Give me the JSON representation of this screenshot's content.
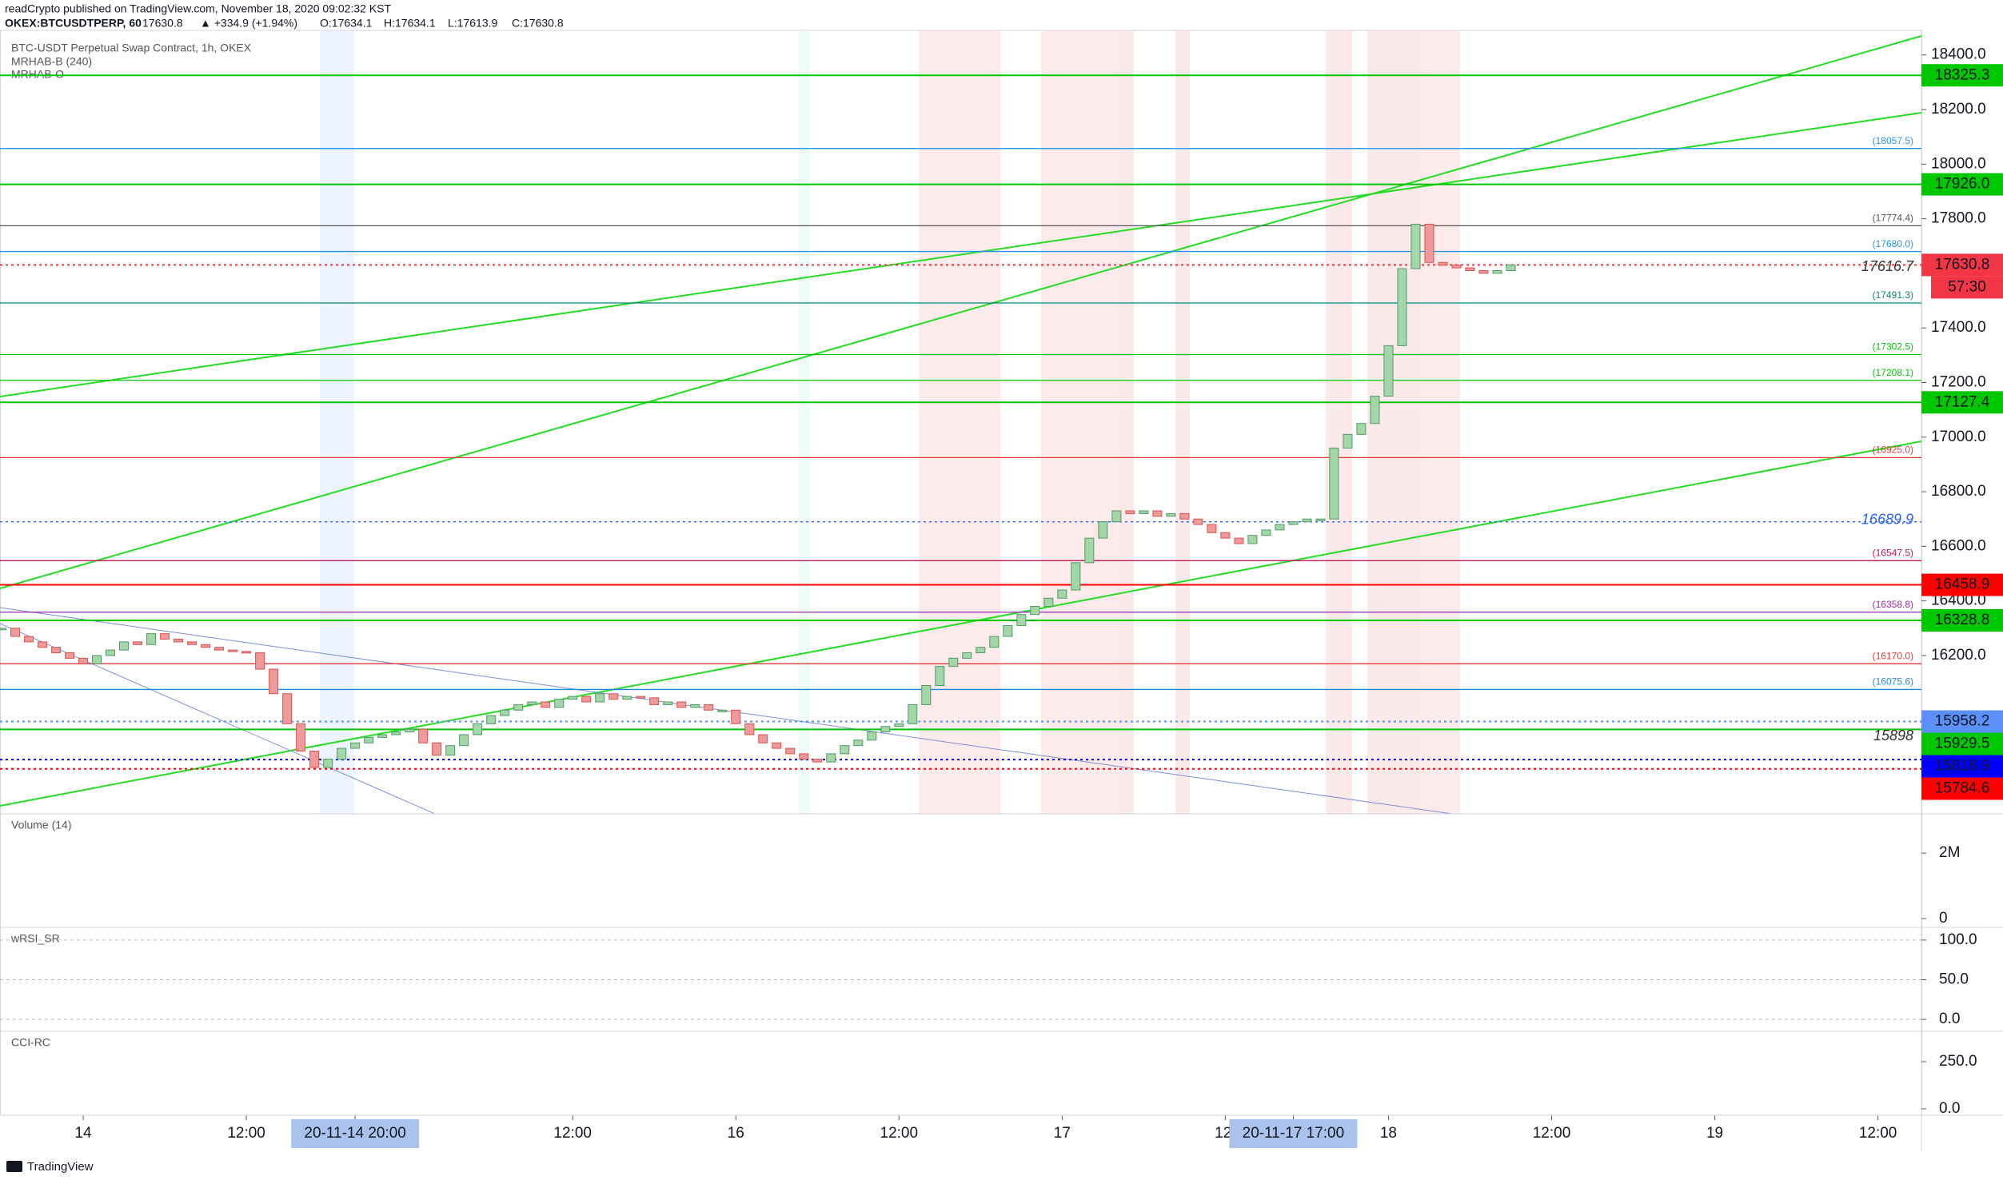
{
  "header": {
    "publisher": "readCrypto published on TradingView.com, November 18, 2020 09:02:32 KST",
    "symbol": "OKEX:BTCUSDTPERP, 60",
    "last": "17630.8",
    "change": "▲ +334.9 (+1.94%)",
    "open": "O:17634.1",
    "high": "H:17634.1",
    "low": "L:17613.9",
    "close": "C:17630.8"
  },
  "legend": [
    "BTC-USDT Perpetual Swap Contract, 1h, OKEX",
    "MRHAB-B (240)",
    "MRHAB-O"
  ],
  "chart_data": {
    "type": "candlestick",
    "up_color": "#a5d6a7",
    "down_color": "#ef9a9a",
    "close": [
      16300,
      16270,
      16250,
      16230,
      16210,
      16190,
      16170,
      16200,
      16220,
      16250,
      16240,
      16280,
      16260,
      16250,
      16240,
      16230,
      16220,
      16215,
      16210,
      16150,
      16060,
      15950,
      15850,
      15790,
      15820,
      15860,
      15880,
      15900,
      15910,
      15920,
      15930,
      15880,
      15835,
      15870,
      15910,
      15950,
      15980,
      16000,
      16020,
      16030,
      16010,
      16040,
      16050,
      16030,
      16060,
      16040,
      16050,
      16045,
      16020,
      16030,
      16010,
      16020,
      16000,
      16000,
      15950,
      15910,
      15880,
      15860,
      15840,
      15820,
      15810,
      15840,
      15870,
      15890,
      15920,
      15940,
      15950,
      16020,
      16090,
      16160,
      16190,
      16210,
      16230,
      16270,
      16310,
      16350,
      16380,
      16410,
      16440,
      16540,
      16630,
      16690,
      16730,
      16720,
      16730,
      16710,
      16720,
      16700,
      16680,
      16650,
      16630,
      16610,
      16640,
      16660,
      16680,
      16690,
      16700,
      16700,
      16960,
      17010,
      17050,
      17150,
      17335,
      17617,
      17780,
      17640,
      17630,
      17620,
      17610,
      17600,
      17610,
      17630.8
    ],
    "xlim": [
      -0.12,
      141.2
    ],
    "xticks": [
      {
        "value": 6,
        "label": "14"
      },
      {
        "value": 18,
        "label": "12:00"
      },
      {
        "value": 26,
        "label": "20-11-14  20:00",
        "highlight": true
      },
      {
        "value": 42,
        "label": "12:00"
      },
      {
        "value": 54,
        "label": "16"
      },
      {
        "value": 66,
        "label": "12:00"
      },
      {
        "value": 78,
        "label": "17"
      },
      {
        "value": 90,
        "label": "12:"
      },
      {
        "value": 95,
        "label": "20-11-17  17:00",
        "highlight": true
      },
      {
        "value": 102,
        "label": "18"
      },
      {
        "value": 114,
        "label": "12:00"
      },
      {
        "value": 126,
        "label": "19"
      },
      {
        "value": 138,
        "label": "12:00"
      }
    ],
    "ylim": [
      15620,
      18490
    ],
    "yticks": [
      {
        "value": 18400,
        "label": "18400.0"
      },
      {
        "value": 18200,
        "label": "18200.0"
      },
      {
        "value": 18000,
        "label": "18000.0"
      },
      {
        "value": 17800,
        "label": "17800.0"
      },
      {
        "value": 17400,
        "label": "17400.0"
      },
      {
        "value": 17200,
        "label": "17200.0"
      },
      {
        "value": 17000,
        "label": "17000.0"
      },
      {
        "value": 16800,
        "label": "16800.0"
      },
      {
        "value": 16600,
        "label": "16600.0"
      },
      {
        "value": 16400,
        "label": "16400.0"
      },
      {
        "value": 16200,
        "label": "16200.0"
      }
    ],
    "levels": [
      {
        "value": 18325.3,
        "label": "18325.3",
        "kind": "tag",
        "color": "#00c800",
        "text_color": "#000000",
        "line": "solid"
      },
      {
        "value": 18057.5,
        "label": "(18057.5)",
        "kind": "small",
        "color": "#2196f3",
        "line": "solid"
      },
      {
        "value": 17926.0,
        "label": "17926.0",
        "kind": "tag",
        "color": "#00c800",
        "text_color": "#000000",
        "line": "solid"
      },
      {
        "value": 17774.4,
        "label": "(17774.4)",
        "kind": "small",
        "color": "#555555",
        "line": "solid"
      },
      {
        "value": 17680.0,
        "label": "(17680.0)",
        "kind": "small",
        "color": "#2196f3",
        "line": "solid"
      },
      {
        "value": 17630.8,
        "label": "17630.8",
        "kind": "tag",
        "color": "#f23645",
        "text_color": "#ffffff",
        "line": "dotted",
        "countdown": "57:30"
      },
      {
        "value": 17616.7,
        "label": "17616.7",
        "kind": "italic",
        "color": "#333333",
        "line": "none"
      },
      {
        "value": 17491.3,
        "label": "(17491.3)",
        "kind": "small",
        "color": "#00897b",
        "line": "solid"
      },
      {
        "value": 17302.5,
        "label": "(17302.5)",
        "kind": "small",
        "color": "#00c800",
        "line": "solid"
      },
      {
        "value": 17208.1,
        "label": "(17208.1)",
        "kind": "small",
        "color": "#00c800",
        "line": "solid"
      },
      {
        "value": 17127.4,
        "label": "17127.4",
        "kind": "tag",
        "color": "#00c800",
        "text_color": "#000000",
        "line": "solid"
      },
      {
        "value": 16925.0,
        "label": "(16925.0)",
        "kind": "small",
        "color": "#e53935",
        "line": "solid"
      },
      {
        "value": 16689.9,
        "label": "16689.9",
        "kind": "italic",
        "color": "#2962ff",
        "line": "dotted"
      },
      {
        "value": 16547.5,
        "label": "(16547.5)",
        "kind": "small",
        "color": "#c2185b",
        "line": "solid"
      },
      {
        "value": 16458.9,
        "label": "16458.9",
        "kind": "tag",
        "color": "#ff0000",
        "text_color": "#ffffff",
        "line": "solid"
      },
      {
        "value": 16358.8,
        "label": "(16358.8)",
        "kind": "small",
        "color": "#9c27b0",
        "line": "solid"
      },
      {
        "value": 16328.8,
        "label": "16328.8",
        "kind": "tag",
        "color": "#00c800",
        "text_color": "#000000",
        "line": "solid"
      },
      {
        "value": 16170.0,
        "label": "(16170.0)",
        "kind": "small",
        "color": "#e53935",
        "line": "solid"
      },
      {
        "value": 16075.6,
        "label": "(16075.6)",
        "kind": "small",
        "color": "#1e88e5",
        "line": "solid"
      },
      {
        "value": 15958.2,
        "label": "15958.2",
        "kind": "tag",
        "color": "#5b8ff9",
        "text_color": "#ffffff",
        "line": "dotted"
      },
      {
        "value": 15929.5,
        "label": "15929.5",
        "kind": "tag",
        "color": "#00c800",
        "text_color": "#000000",
        "line": "solid"
      },
      {
        "value": 15898,
        "label": "15898",
        "kind": "italic",
        "color": "#333333",
        "line": "none"
      },
      {
        "value": 15818.9,
        "label": "15818.9",
        "kind": "tag",
        "color": "#0000ff",
        "text_color": "#ffffff",
        "line": "dotted"
      },
      {
        "value": 15784.6,
        "label": "15784.6",
        "kind": "tag",
        "color": "#ff0000",
        "text_color": "#ffffff",
        "line": "dotted"
      }
    ],
    "panes": [
      {
        "label": "Volume (14)",
        "ylim": [
          -270000,
          3200000
        ],
        "yticks": [
          {
            "value": 2000000,
            "label": "2M"
          },
          0
        ]
      },
      {
        "label": "wRSI_SR",
        "ylim": [
          -15,
          116
        ],
        "yticks": [
          {
            "value": 100,
            "label": "100.0"
          },
          {
            "value": 50,
            "label": "50.0"
          },
          {
            "value": 0,
            "label": "0.0"
          }
        ]
      },
      {
        "label": "CCI-RC",
        "ylim": [
          -34,
          411
        ],
        "yticks": [
          {
            "value": 250,
            "label": "250.0"
          },
          {
            "value": 0,
            "label": "0.0"
          }
        ]
      }
    ]
  },
  "footer": "TradingView"
}
